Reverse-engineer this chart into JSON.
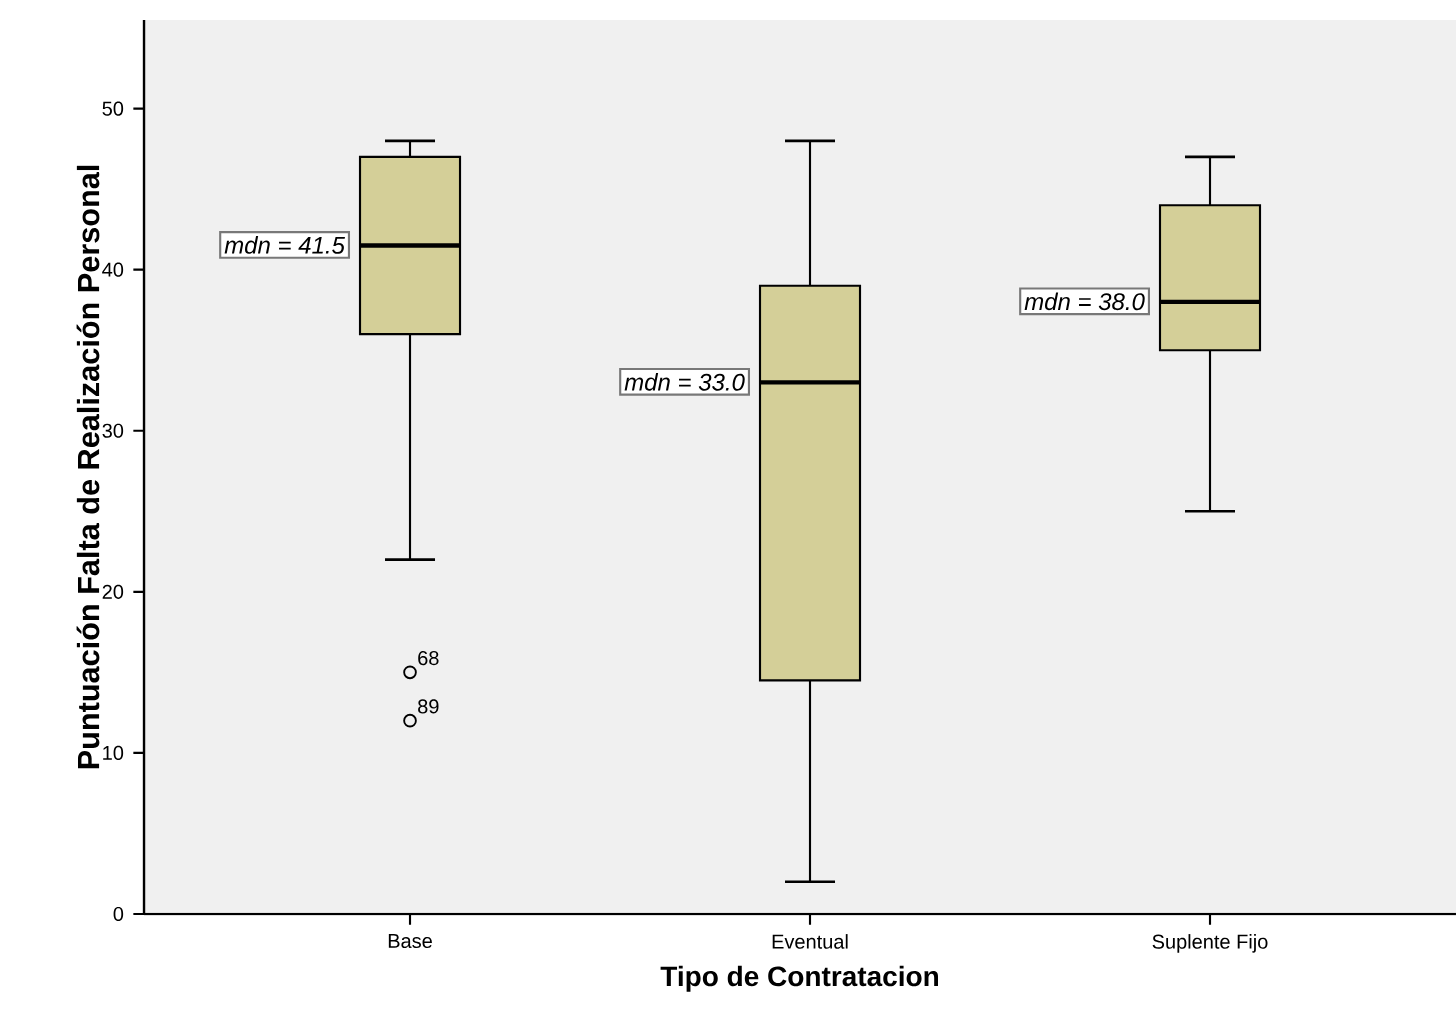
{
  "chart_data": {
    "type": "box",
    "xlabel": "Tipo de Contratacion",
    "ylabel": "Puntuación Falta de Realización Personal",
    "categories": [
      "Base",
      "Eventual",
      "Suplente Fijo"
    ],
    "color": "#d4cf98",
    "boxes": [
      {
        "low": 22,
        "q1": 36,
        "median": 41.5,
        "q3": 47,
        "high": 48,
        "outliers": [
          15,
          12
        ]
      },
      {
        "low": 2,
        "q1": 14.5,
        "median": 33,
        "q3": 39,
        "high": 48
      },
      {
        "low": 25,
        "q1": 35,
        "median": 38,
        "q3": 44,
        "high": 47
      }
    ],
    "ylim": [
      0,
      55.5
    ],
    "yticks": [
      0,
      10,
      20,
      30,
      40,
      50
    ],
    "annotations": [
      "mdn = 41.5",
      "mdn = 33.0",
      "mdn = 38.0",
      "68",
      "89"
    ]
  }
}
